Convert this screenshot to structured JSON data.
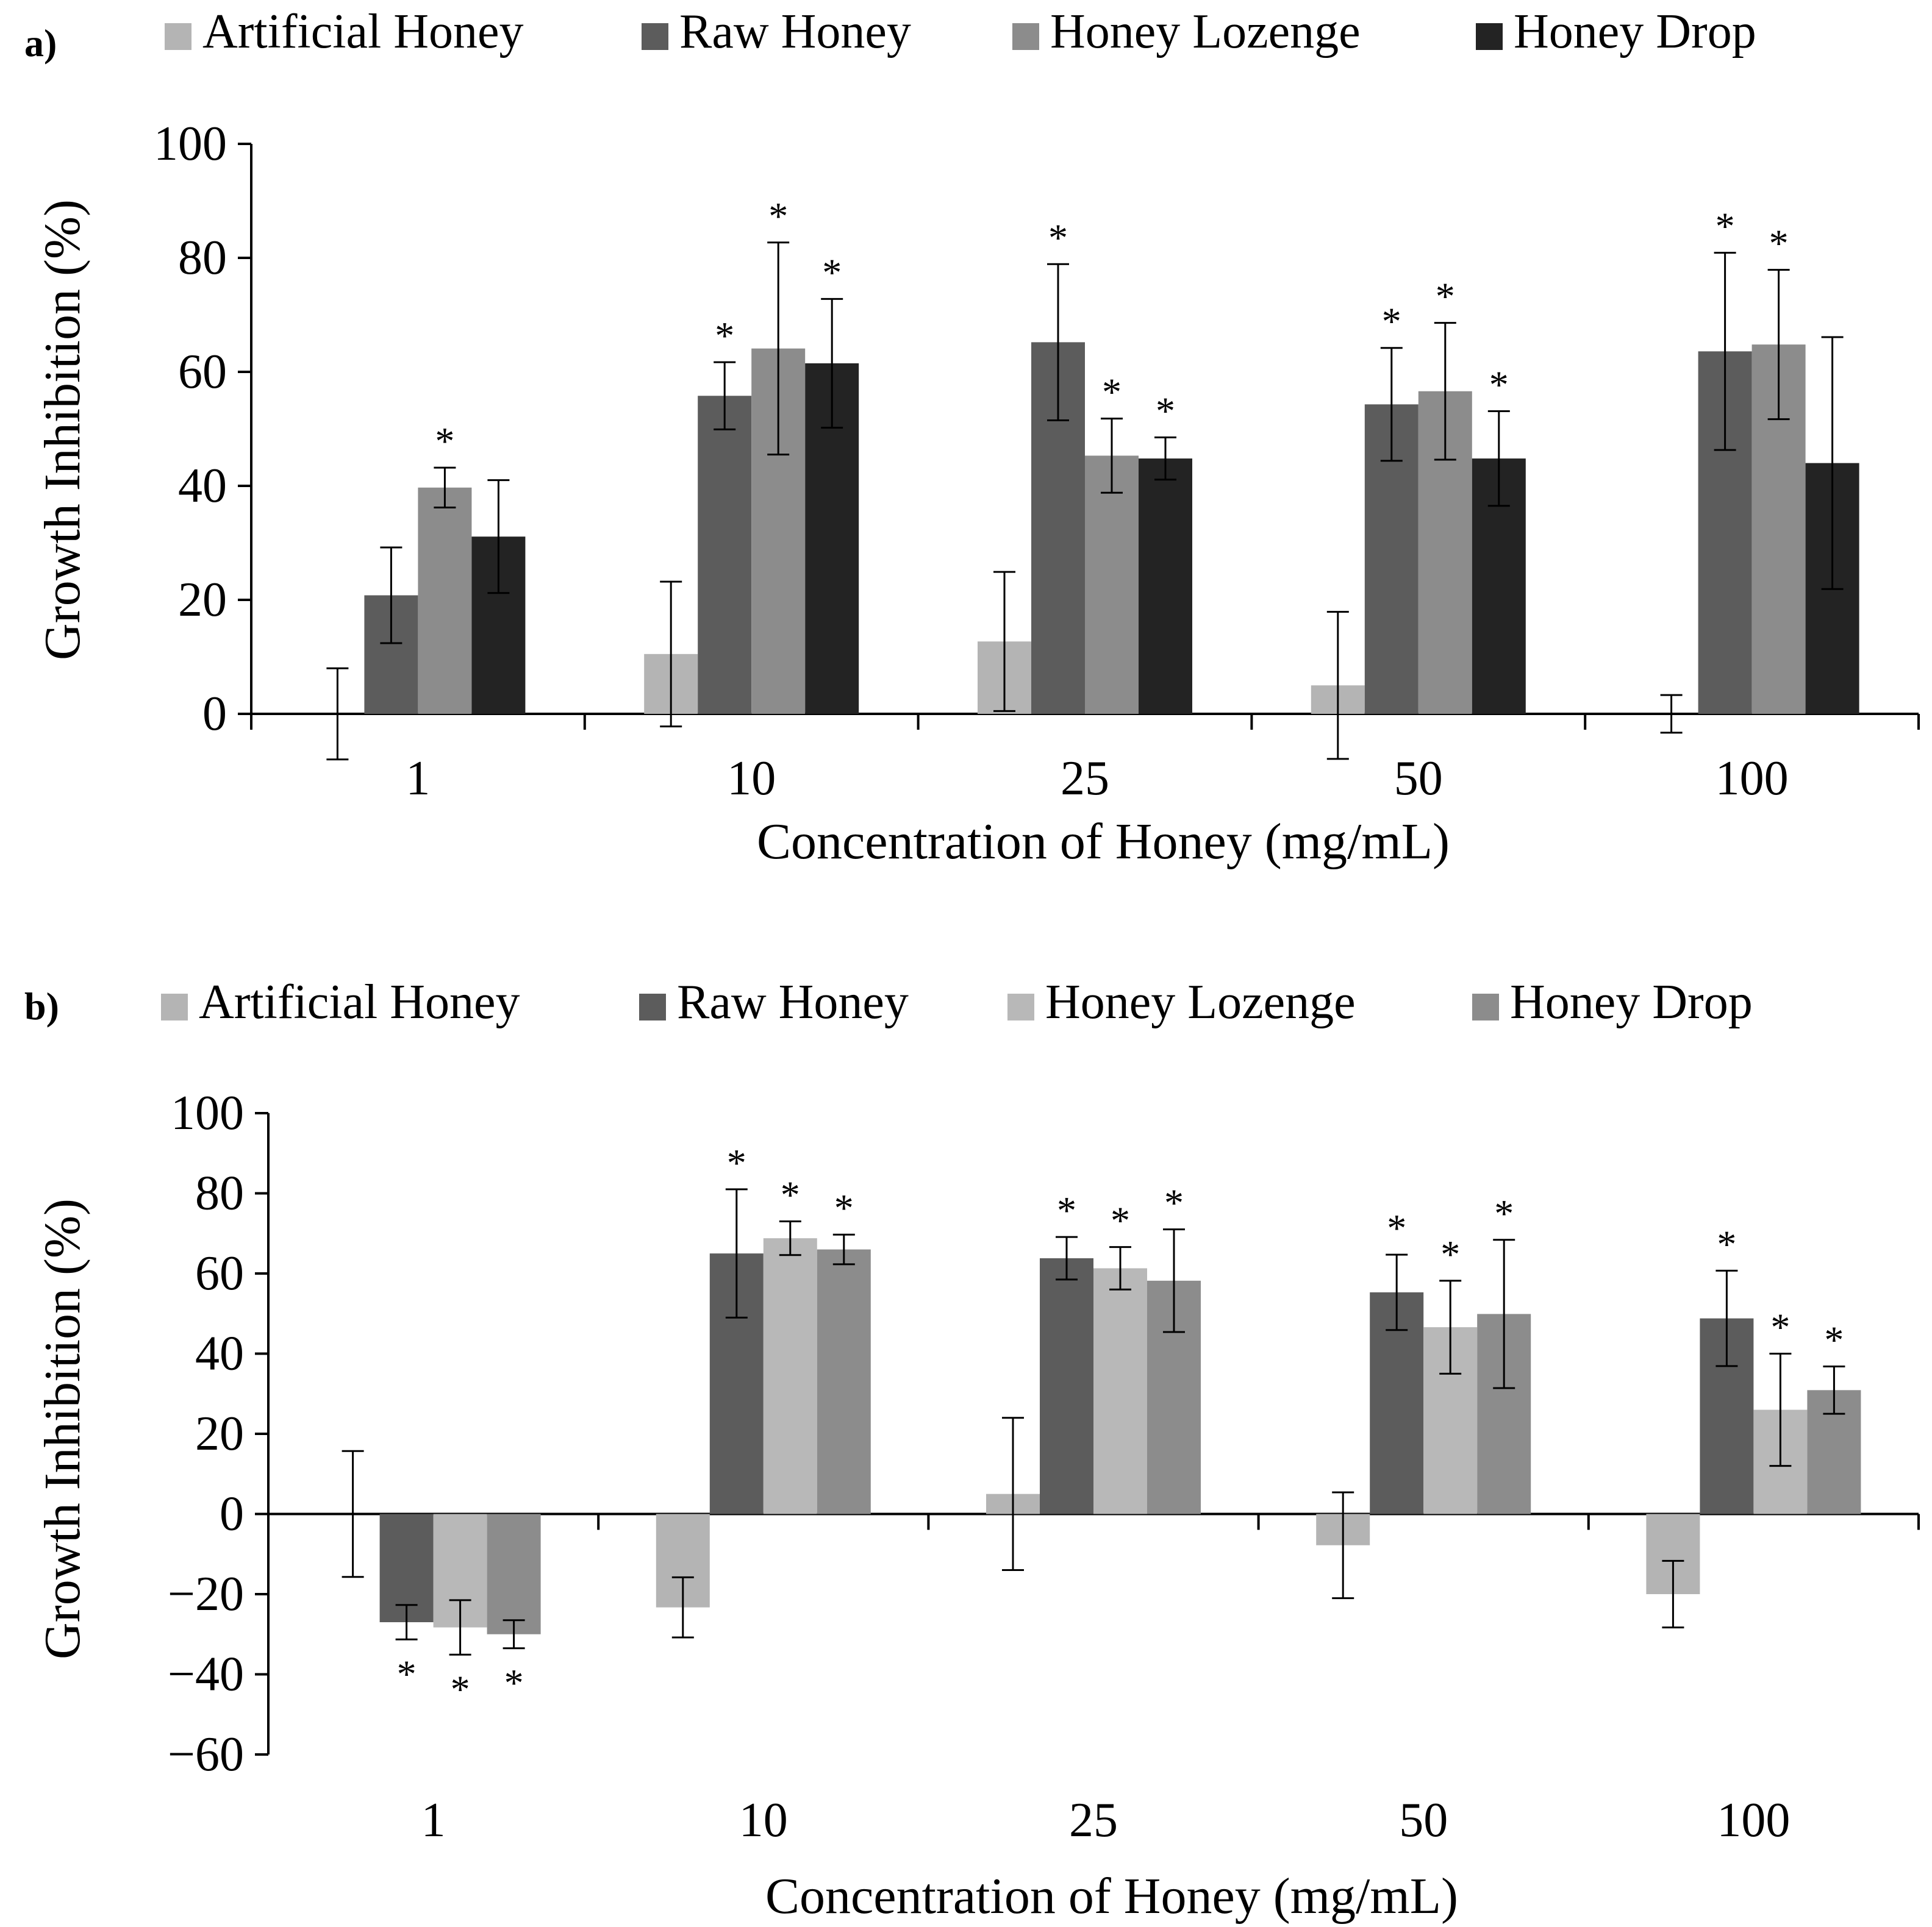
{
  "chart_data": [
    {
      "panel_label": "a)",
      "type": "bar",
      "categories": [
        "1",
        "10",
        "25",
        "50",
        "100"
      ],
      "xlabel": "Concentration of Honey (mg/mL)",
      "ylabel": "Growth Inhibition (%)",
      "ylim": [
        0,
        100
      ],
      "yticks": [
        0,
        20,
        40,
        60,
        80,
        100
      ],
      "grid": false,
      "legend_position": "top",
      "series": [
        {
          "name": "Artificial Honey",
          "color": "#b4b4b4",
          "values": [
            0,
            10.5,
            12.7,
            5.0,
            0
          ],
          "errors": [
            8.0,
            12.7,
            12.2,
            12.9,
            3.3
          ],
          "significant": [
            false,
            false,
            false,
            false,
            false
          ]
        },
        {
          "name": "Raw Honey",
          "color": "#5c5c5c",
          "values": [
            20.8,
            55.8,
            65.2,
            54.3,
            63.6
          ],
          "errors": [
            8.4,
            5.9,
            13.7,
            9.9,
            17.3
          ],
          "significant": [
            false,
            true,
            true,
            true,
            true
          ]
        },
        {
          "name": "Honey Lozenge",
          "color": "#8c8c8c",
          "values": [
            39.7,
            64.1,
            45.3,
            56.6,
            64.8
          ],
          "errors": [
            3.5,
            18.6,
            6.5,
            12.0,
            13.1
          ],
          "significant": [
            true,
            true,
            true,
            true,
            true
          ]
        },
        {
          "name": "Honey Drop",
          "color": "#232323",
          "values": [
            31.1,
            61.5,
            44.8,
            44.8,
            44.0
          ],
          "errors": [
            9.9,
            11.3,
            3.7,
            8.3,
            22.1
          ],
          "significant": [
            false,
            true,
            true,
            true,
            false
          ]
        }
      ],
      "significance_marker": "*"
    },
    {
      "panel_label": "b)",
      "type": "bar",
      "categories": [
        "1",
        "10",
        "25",
        "50",
        "100"
      ],
      "xlabel": "Concentration of Honey (mg/mL)",
      "ylabel": "Growth Inhibition (%)",
      "ylim": [
        -60,
        100
      ],
      "yticks": [
        -60,
        -40,
        -20,
        0,
        20,
        40,
        60,
        80,
        100
      ],
      "ytick_labels": [
        "−60",
        "−40",
        "−20",
        "0",
        "20",
        "40",
        "60",
        "80",
        "100"
      ],
      "grid": false,
      "legend_position": "top",
      "series": [
        {
          "name": "Artificial Honey",
          "color": "#b4b4b4",
          "values": [
            0,
            -23.3,
            5.0,
            -7.8,
            -20.0
          ],
          "errors": [
            15.7,
            7.5,
            19.0,
            13.2,
            8.3
          ],
          "significant": [
            false,
            false,
            false,
            false,
            false
          ]
        },
        {
          "name": "Raw Honey",
          "color": "#5c5c5c",
          "values": [
            -27.0,
            65.0,
            63.8,
            55.3,
            48.8
          ],
          "errors": [
            4.3,
            16.0,
            5.3,
            9.4,
            11.9
          ],
          "significant": [
            true,
            true,
            true,
            true,
            true
          ]
        },
        {
          "name": "Honey Lozenge",
          "color": "#b8b8b8",
          "values": [
            -28.3,
            68.8,
            61.3,
            46.6,
            26.0
          ],
          "errors": [
            6.8,
            4.2,
            5.3,
            11.6,
            14.0
          ],
          "significant": [
            true,
            true,
            true,
            true,
            true
          ]
        },
        {
          "name": "Honey Drop",
          "color": "#8c8c8c",
          "values": [
            -30.0,
            66.0,
            58.2,
            49.9,
            30.9
          ],
          "errors": [
            3.5,
            3.7,
            12.8,
            18.5,
            5.9
          ],
          "significant": [
            true,
            true,
            true,
            true,
            true
          ]
        }
      ],
      "significance_marker": "*"
    }
  ]
}
